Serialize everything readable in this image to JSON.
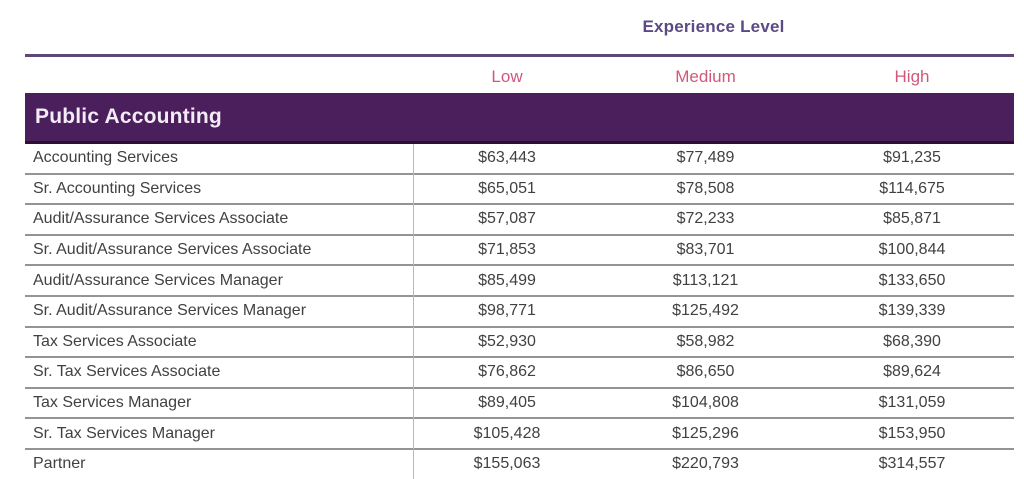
{
  "header": {
    "group_label": "Experience Level",
    "columns": [
      "Low",
      "Medium",
      "High"
    ]
  },
  "section": {
    "title": "Public Accounting"
  },
  "rows": [
    {
      "label": "Accounting Services",
      "low": "$63,443",
      "medium": "$77,489",
      "high": "$91,235"
    },
    {
      "label": "Sr. Accounting Services",
      "low": "$65,051",
      "medium": "$78,508",
      "high": "$114,675"
    },
    {
      "label": "Audit/Assurance Services Associate",
      "low": "$57,087",
      "medium": "$72,233",
      "high": "$85,871"
    },
    {
      "label": "Sr. Audit/Assurance Services Associate",
      "low": "$71,853",
      "medium": "$83,701",
      "high": "$100,844"
    },
    {
      "label": "Audit/Assurance Services Manager",
      "low": "$85,499",
      "medium": "$113,121",
      "high": "$133,650"
    },
    {
      "label": "Sr. Audit/Assurance Services Manager",
      "low": "$98,771",
      "medium": "$125,492",
      "high": "$139,339"
    },
    {
      "label": "Tax Services Associate",
      "low": "$52,930",
      "medium": "$58,982",
      "high": "$68,390"
    },
    {
      "label": "Sr. Tax Services Associate",
      "low": "$76,862",
      "medium": "$86,650",
      "high": "$89,624"
    },
    {
      "label": "Tax Services Manager",
      "low": "$89,405",
      "medium": "$104,808",
      "high": "$131,059"
    },
    {
      "label": "Sr. Tax Services Manager",
      "low": "$105,428",
      "medium": "$125,296",
      "high": "$153,950"
    },
    {
      "label": "Partner",
      "low": "$155,063",
      "medium": "$220,793",
      "high": "$314,557"
    }
  ],
  "colors": {
    "section_bar": "#4a1f5c",
    "section_bar_edge": "#2a1133",
    "top_rule": "#5d4878",
    "group_label_text": "#5b4a85",
    "column_head_text": "#d0597a",
    "row_text": "#414141",
    "row_separator": "#949494",
    "column_divider": "#b9b9b9"
  },
  "chart_data": {
    "type": "table",
    "title": "Public Accounting",
    "column_group_label": "Experience Level",
    "columns": [
      "Low",
      "Medium",
      "High"
    ],
    "row_labels": [
      "Accounting Services",
      "Sr. Accounting Services",
      "Audit/Assurance Services Associate",
      "Sr. Audit/Assurance Services Associate",
      "Audit/Assurance Services Manager",
      "Sr. Audit/Assurance Services Manager",
      "Tax Services Associate",
      "Sr. Tax Services Associate",
      "Tax Services Manager",
      "Sr. Tax Services Manager",
      "Partner"
    ],
    "values": [
      [
        63443,
        77489,
        91235
      ],
      [
        65051,
        78508,
        114675
      ],
      [
        57087,
        72233,
        85871
      ],
      [
        71853,
        83701,
        100844
      ],
      [
        85499,
        113121,
        133650
      ],
      [
        98771,
        125492,
        139339
      ],
      [
        52930,
        58982,
        68390
      ],
      [
        76862,
        86650,
        89624
      ],
      [
        89405,
        104808,
        131059
      ],
      [
        105428,
        125296,
        153950
      ],
      [
        155063,
        220793,
        314557
      ]
    ],
    "units": "USD salary"
  }
}
